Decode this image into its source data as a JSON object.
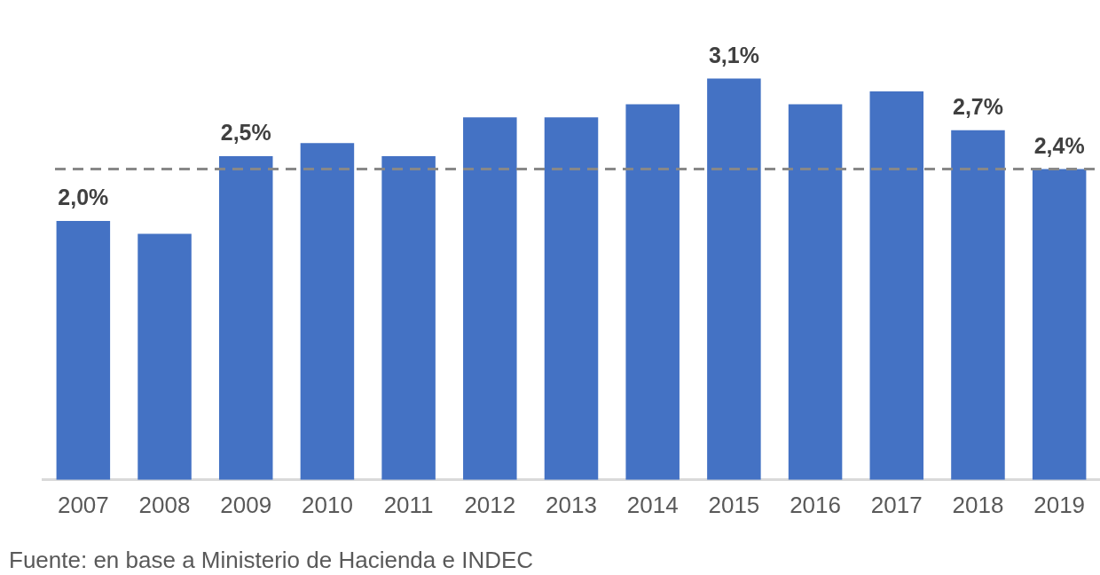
{
  "chart_data": {
    "type": "bar",
    "categories": [
      "2007",
      "2008",
      "2009",
      "2010",
      "2011",
      "2012",
      "2013",
      "2014",
      "2015",
      "2016",
      "2017",
      "2018",
      "2019"
    ],
    "values": [
      2.0,
      1.9,
      2.5,
      2.6,
      2.5,
      2.8,
      2.8,
      2.9,
      3.1,
      2.9,
      3.0,
      2.7,
      2.4
    ],
    "value_labels": [
      "2,0%",
      null,
      "2,5%",
      null,
      null,
      null,
      null,
      null,
      "3,1%",
      null,
      null,
      "2,7%",
      "2,4%"
    ],
    "color": "#4472c4",
    "tick_labels": "x",
    "ref_lines": [
      {
        "axis": "y",
        "value": 2.4,
        "color": "#888888",
        "line_style": "dashed"
      }
    ],
    "annotations": [
      "Fuente: en base a Ministerio de Hacienda e INDEC"
    ]
  }
}
